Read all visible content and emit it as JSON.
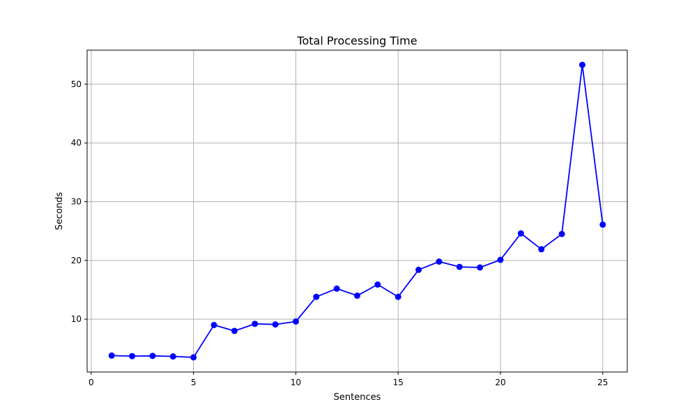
{
  "chart_data": {
    "type": "line",
    "title": "Total Processing Time",
    "xlabel": "Sentences",
    "ylabel": "Seconds",
    "x": [
      1,
      2,
      3,
      4,
      5,
      6,
      7,
      8,
      9,
      10,
      11,
      12,
      13,
      14,
      15,
      16,
      17,
      18,
      19,
      20,
      21,
      22,
      23,
      24,
      25
    ],
    "series": [
      {
        "values": [
          3.8,
          3.7,
          3.75,
          3.65,
          3.5,
          9.0,
          8.0,
          9.2,
          9.1,
          9.6,
          13.8,
          15.2,
          14.0,
          15.9,
          13.8,
          18.4,
          19.8,
          18.9,
          18.8,
          20.1,
          24.6,
          21.9,
          24.5,
          53.3,
          26.1
        ],
        "color": "#0000ff",
        "marker": "circle"
      }
    ],
    "xlim": [
      -0.2,
      26.2
    ],
    "ylim": [
      1.0,
      55.8
    ],
    "xticks": [
      0,
      5,
      10,
      15,
      20,
      25
    ],
    "yticks": [
      10,
      20,
      30,
      40,
      50
    ],
    "grid": true
  }
}
